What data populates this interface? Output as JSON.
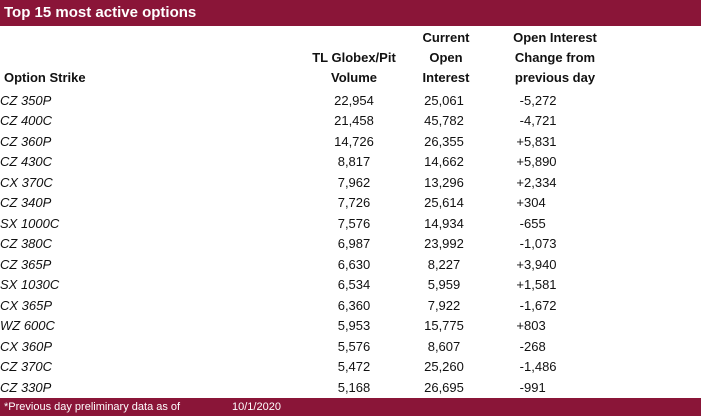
{
  "title": "Top 15 most active options",
  "headers": {
    "strike": "Option Strike",
    "volume": [
      "TL Globex/Pit",
      "Volume"
    ],
    "open_interest": [
      "Current",
      "Open",
      "Interest"
    ],
    "oi_change": [
      "Open Interest",
      "Change from",
      "previous day"
    ]
  },
  "rows": [
    {
      "strike": "CZ 350P",
      "volume": "22,954",
      "oi": "25,061",
      "sign": "-",
      "change": "5,272"
    },
    {
      "strike": "CZ 400C",
      "volume": "21,458",
      "oi": "45,782",
      "sign": "-",
      "change": "4,721"
    },
    {
      "strike": "CZ 360P",
      "volume": "14,726",
      "oi": "26,355",
      "sign": "+",
      "change": "5,831"
    },
    {
      "strike": "CZ 430C",
      "volume": "8,817",
      "oi": "14,662",
      "sign": "+",
      "change": "5,890"
    },
    {
      "strike": "CX 370C",
      "volume": "7,962",
      "oi": "13,296",
      "sign": "+",
      "change": "2,334"
    },
    {
      "strike": "CZ 340P",
      "volume": "7,726",
      "oi": "25,614",
      "sign": "+",
      "change": "304"
    },
    {
      "strike": "SX 1000C",
      "volume": "7,576",
      "oi": "14,934",
      "sign": "-",
      "change": "655"
    },
    {
      "strike": "CZ 380C",
      "volume": "6,987",
      "oi": "23,992",
      "sign": "-",
      "change": "1,073"
    },
    {
      "strike": "CZ 365P",
      "volume": "6,630",
      "oi": "8,227",
      "sign": "+",
      "change": "3,940"
    },
    {
      "strike": "SX 1030C",
      "volume": "6,534",
      "oi": "5,959",
      "sign": "+",
      "change": "1,581"
    },
    {
      "strike": "CX 365P",
      "volume": "6,360",
      "oi": "7,922",
      "sign": "-",
      "change": "1,672"
    },
    {
      "strike": "WZ 600C",
      "volume": "5,953",
      "oi": "15,775",
      "sign": "+",
      "change": "803"
    },
    {
      "strike": "CX 360P",
      "volume": "5,576",
      "oi": "8,607",
      "sign": "-",
      "change": "268"
    },
    {
      "strike": "CZ 370C",
      "volume": "5,472",
      "oi": "25,260",
      "sign": "-",
      "change": "1,486"
    },
    {
      "strike": "CZ 330P",
      "volume": "5,168",
      "oi": "26,695",
      "sign": "-",
      "change": "991"
    }
  ],
  "footer": {
    "note": "*Previous day preliminary data as of",
    "date": "10/1/2020"
  },
  "colors": {
    "title_bar": "#8a1538",
    "title_text": "#ffffff"
  }
}
